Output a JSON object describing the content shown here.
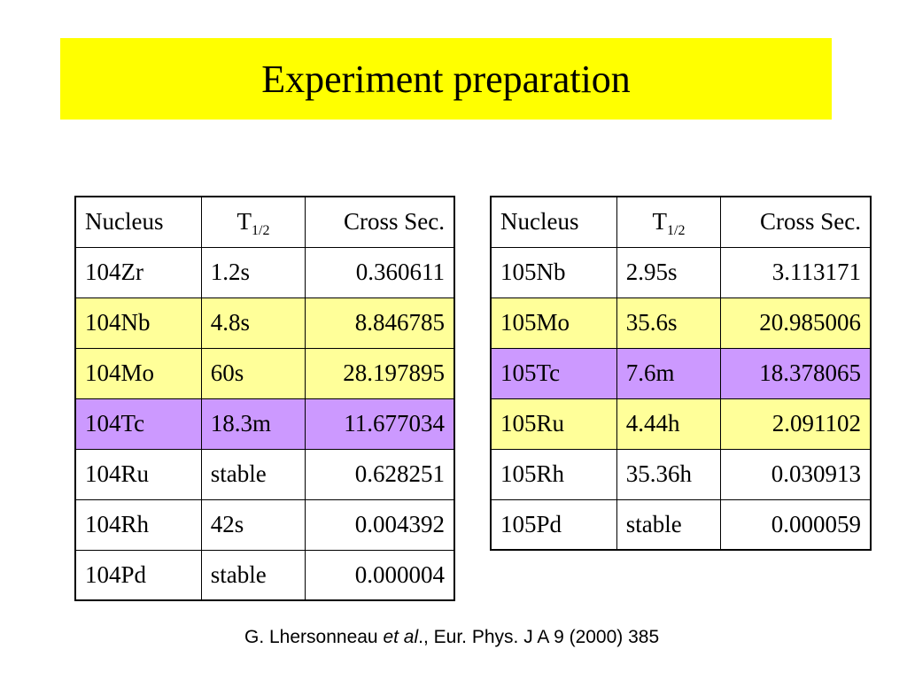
{
  "title": "Experiment preparation",
  "colors": {
    "title_band": "#ffff00",
    "row_yellow": "#ffff99",
    "row_purple": "#cc99ff",
    "row_white": "#ffffff"
  },
  "table_left": {
    "headers": {
      "nucleus": "Nucleus",
      "half_life_base": "T",
      "half_life_sub": "1/2",
      "cross_section": "Cross Sec."
    },
    "rows": [
      {
        "nucleus": "104Zr",
        "half_life": "1.2s",
        "cross_section": "0.360611",
        "highlight": "white"
      },
      {
        "nucleus": "104Nb",
        "half_life": "4.8s",
        "cross_section": "8.846785",
        "highlight": "yellow"
      },
      {
        "nucleus": "104Mo",
        "half_life": "60s",
        "cross_section": "28.197895",
        "highlight": "yellow"
      },
      {
        "nucleus": "104Tc",
        "half_life": "18.3m",
        "cross_section": "11.677034",
        "highlight": "purple"
      },
      {
        "nucleus": "104Ru",
        "half_life": "stable",
        "cross_section": "0.628251",
        "highlight": "white"
      },
      {
        "nucleus": "104Rh",
        "half_life": "42s",
        "cross_section": "0.004392",
        "highlight": "white"
      },
      {
        "nucleus": "104Pd",
        "half_life": "stable",
        "cross_section": "0.000004",
        "highlight": "white"
      }
    ]
  },
  "table_right": {
    "headers": {
      "nucleus": "Nucleus",
      "half_life_base": "T",
      "half_life_sub": "1/2",
      "cross_section": "Cross Sec."
    },
    "rows": [
      {
        "nucleus": "105Nb",
        "half_life": "2.95s",
        "cross_section": "3.113171",
        "highlight": "white"
      },
      {
        "nucleus": "105Mo",
        "half_life": "35.6s",
        "cross_section": "20.985006",
        "highlight": "yellow"
      },
      {
        "nucleus": "105Tc",
        "half_life": "7.6m",
        "cross_section": "18.378065",
        "highlight": "purple"
      },
      {
        "nucleus": "105Ru",
        "half_life": "4.44h",
        "cross_section": "2.091102",
        "highlight": "yellow"
      },
      {
        "nucleus": "105Rh",
        "half_life": "35.36h",
        "cross_section": "0.030913",
        "highlight": "white"
      },
      {
        "nucleus": "105Pd",
        "half_life": "stable",
        "cross_section": "0.000059",
        "highlight": "white"
      }
    ]
  },
  "citation": {
    "authors": "G. Lhersonneau ",
    "et_al": "et al",
    "rest": ".,  Eur. Phys. J A 9 (2000) 385"
  }
}
